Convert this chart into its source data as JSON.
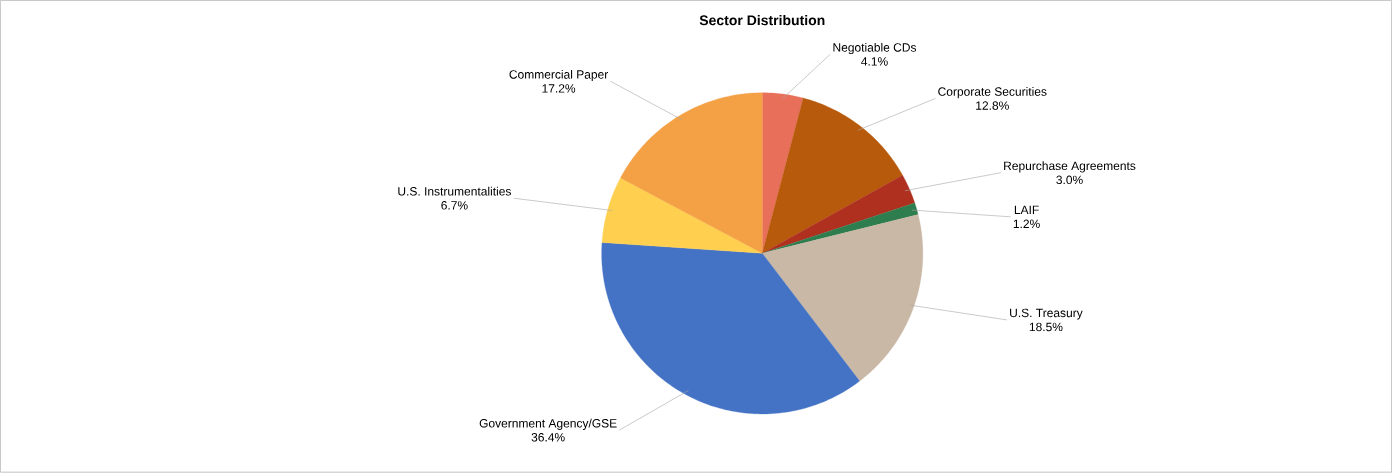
{
  "chart_data": {
    "type": "pie",
    "title": "Sector Distribution",
    "categories": [
      "Negotiable CDs",
      "Corporate Securities",
      "Repurchase Agreements",
      "LAIF",
      "U.S. Treasury",
      "Government Agency/GSE",
      "U.S. Instrumentalities",
      "Commercial Paper"
    ],
    "values": [
      4.1,
      12.8,
      3.0,
      1.2,
      18.5,
      36.4,
      6.7,
      17.2
    ],
    "colors": [
      "#e8705a",
      "#b85a0c",
      "#b03020",
      "#2e7d4f",
      "#c9b8a5",
      "#4472c4",
      "#ffd050",
      "#f4a044"
    ],
    "value_labels": [
      "4.1%",
      "12.8%",
      "3.0%",
      "1.2%",
      "18.5%",
      "36.4%",
      "6.7%",
      "17.2%"
    ]
  }
}
